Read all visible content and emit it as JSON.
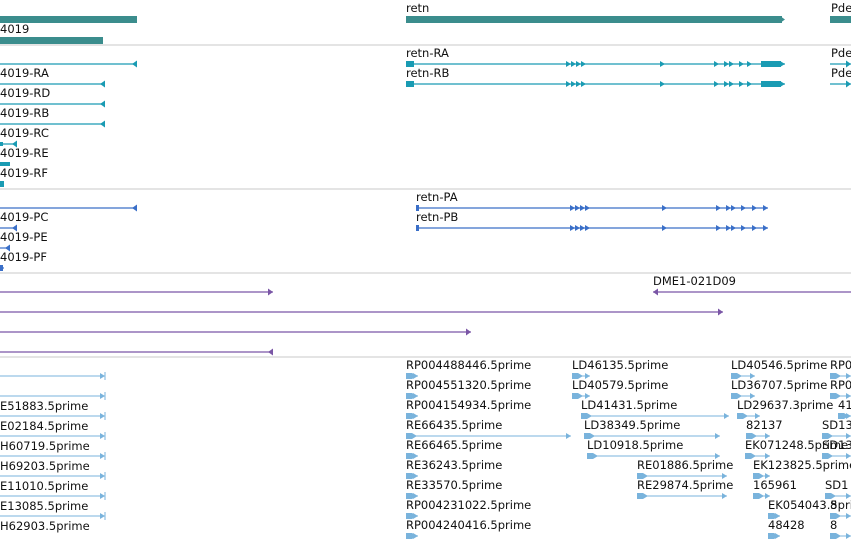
{
  "colors": {
    "gene": "#3b8d8d",
    "transcript": "#1a9bb3",
    "protein": "#3a6fc8",
    "clone": "#7a56a6",
    "est": "#79b3dc",
    "divider": "#c8c8c8"
  },
  "tracks": {
    "genes": [
      {
        "label": "",
        "dir": "none",
        "thick": true
      },
      {
        "label": "4019",
        "dir": "none",
        "thick": true
      },
      {
        "label": "retn",
        "dir": "right",
        "thick": true
      },
      {
        "label": "Pde",
        "dir": "none",
        "thick": true
      }
    ],
    "transcripts": [
      {
        "label": "4019-RA",
        "dir": "left"
      },
      {
        "label": "4019-RD",
        "dir": "left"
      },
      {
        "label": "4019-RB",
        "dir": "left"
      },
      {
        "label": "4019-RC",
        "dir": "left"
      },
      {
        "label": "4019-RE",
        "dir": "left"
      },
      {
        "label": "4019-RF",
        "dir": "none"
      },
      {
        "label": "retn-RA",
        "dir": "right"
      },
      {
        "label": "retn-RB",
        "dir": "right"
      },
      {
        "label": "Pde",
        "dir": "right"
      },
      {
        "label": "Pde",
        "dir": "right"
      }
    ],
    "proteins": [
      {
        "label": "",
        "dir": "left"
      },
      {
        "label": "4019-PC",
        "dir": "left"
      },
      {
        "label": "4019-PE",
        "dir": "left"
      },
      {
        "label": "4019-PF",
        "dir": "none"
      },
      {
        "label": "retn-PA",
        "dir": "right"
      },
      {
        "label": "retn-PB",
        "dir": "right"
      }
    ],
    "clones": [
      {
        "label": "",
        "dir": "right"
      },
      {
        "label": "DME1-021D09",
        "dir": "left"
      },
      {
        "label": "",
        "dir": "right"
      },
      {
        "label": "",
        "dir": "right"
      },
      {
        "label": "",
        "dir": "left"
      }
    ],
    "ests": [
      {
        "label": ""
      },
      {
        "label": "E51883.5prime"
      },
      {
        "label": "E02184.5prime"
      },
      {
        "label": "H60719.5prime"
      },
      {
        "label": "H69203.5prime"
      },
      {
        "label": "E11010.5prime"
      },
      {
        "label": "E13085.5prime"
      },
      {
        "label": "H62903.5prime"
      },
      {
        "label": "RP004488446.5prime"
      },
      {
        "label": "RP004551320.5prime"
      },
      {
        "label": "RP004154934.5prime"
      },
      {
        "label": "RE66435.5prime"
      },
      {
        "label": "RE66465.5prime"
      },
      {
        "label": "RE36243.5prime"
      },
      {
        "label": "RE33570.5prime"
      },
      {
        "label": "RP004231022.5prime"
      },
      {
        "label": "RP004240416.5prime"
      },
      {
        "label": "LD46135.5prime"
      },
      {
        "label": "LD40579.5prime"
      },
      {
        "label": "LD41431.5prime"
      },
      {
        "label": "LD38349.5prime"
      },
      {
        "label": "LD10918.5prime"
      },
      {
        "label": "RE01886.5prime"
      },
      {
        "label": "RE29874.5prime"
      },
      {
        "label": "LD40546.5prime"
      },
      {
        "label": "LD36707.5prime"
      },
      {
        "label": "LD29637.3prime"
      },
      {
        "label": "82137"
      },
      {
        "label": "EK071248.5prime"
      },
      {
        "label": "EK123825.5prime"
      },
      {
        "label": "165961"
      },
      {
        "label": "EK054043.5prime"
      },
      {
        "label": "48428"
      },
      {
        "label": "RP0"
      },
      {
        "label": "RP0"
      },
      {
        "label": "41"
      },
      {
        "label": "SD13"
      },
      {
        "label": "SD13"
      },
      {
        "label": "SD1"
      },
      {
        "label": "8"
      },
      {
        "label": "8"
      }
    ]
  }
}
